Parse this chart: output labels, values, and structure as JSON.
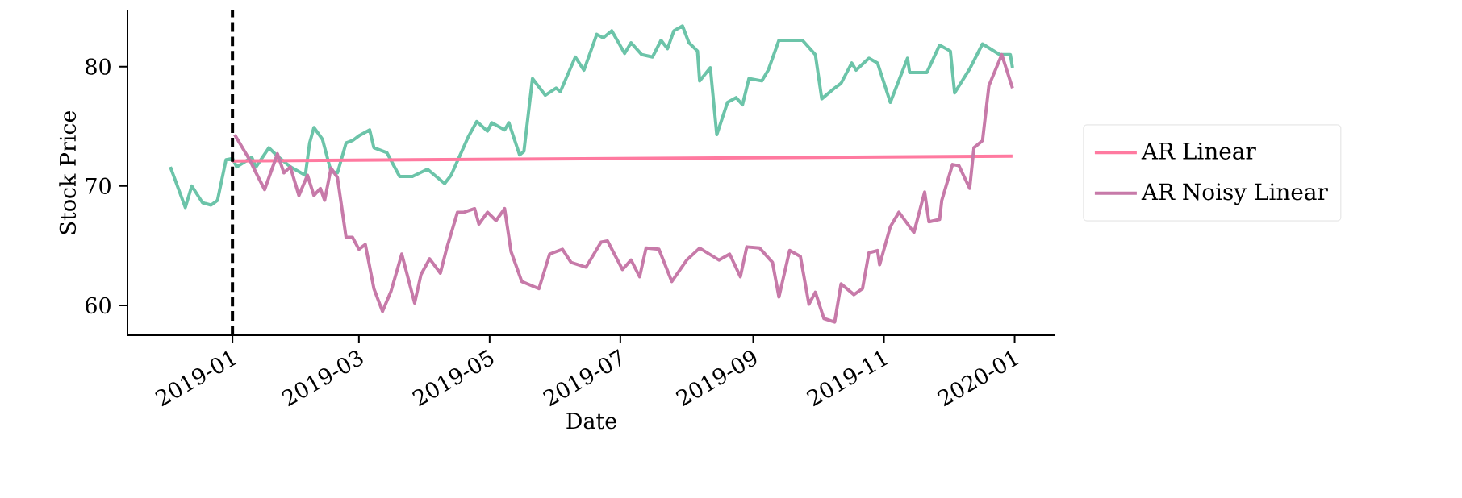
{
  "chart_data": {
    "type": "line",
    "xlabel": "Date",
    "ylabel": "Stock Price",
    "xlim": [
      "2018-11-13",
      "2020-01-20"
    ],
    "ylim": [
      57.5,
      84.7
    ],
    "xticks": [
      "2019-01",
      "2019-03",
      "2019-05",
      "2019-07",
      "2019-09",
      "2019-11",
      "2020-01"
    ],
    "yticks": [
      60,
      70,
      80
    ],
    "legend": "right",
    "grid": false,
    "ref_lines": [
      {
        "axis": "x",
        "value": "2019-01-01",
        "color": "#000000",
        "line_style": "dashed"
      }
    ],
    "series": [
      {
        "color": "#6cc4a9",
        "x": [
          "2018-12-03",
          "2018-12-10",
          "2018-12-13",
          "2018-12-18",
          "2018-12-22",
          "2018-12-25",
          "2018-12-29",
          "2019-01-01",
          "2019-01-03",
          "2019-01-10",
          "2019-01-12",
          "2019-01-18",
          "2019-01-22",
          "2019-01-28",
          "2019-02-04",
          "2019-02-06",
          "2019-02-08",
          "2019-02-12",
          "2019-02-16",
          "2019-02-19",
          "2019-02-23",
          "2019-02-26",
          "2019-03-01",
          "2019-03-06",
          "2019-03-08",
          "2019-03-14",
          "2019-03-20",
          "2019-03-26",
          "2019-04-02",
          "2019-04-10",
          "2019-04-13",
          "2019-04-18",
          "2019-04-21",
          "2019-04-25",
          "2019-04-30",
          "2019-05-02",
          "2019-05-08",
          "2019-05-10",
          "2019-05-15",
          "2019-05-17",
          "2019-05-21",
          "2019-05-27",
          "2019-06-01",
          "2019-06-03",
          "2019-06-10",
          "2019-06-14",
          "2019-06-20",
          "2019-06-23",
          "2019-06-27",
          "2019-07-03",
          "2019-07-06",
          "2019-07-11",
          "2019-07-16",
          "2019-07-20",
          "2019-07-23",
          "2019-07-26",
          "2019-07-30",
          "2019-08-02",
          "2019-08-06",
          "2019-08-07",
          "2019-08-12",
          "2019-08-15",
          "2019-08-20",
          "2019-08-24",
          "2019-08-27",
          "2019-08-30",
          "2019-09-05",
          "2019-09-08",
          "2019-09-13",
          "2019-09-19",
          "2019-09-24",
          "2019-09-30",
          "2019-10-03",
          "2019-10-09",
          "2019-10-12",
          "2019-10-17",
          "2019-10-19",
          "2019-10-25",
          "2019-10-29",
          "2019-11-04",
          "2019-11-12",
          "2019-11-13",
          "2019-11-21",
          "2019-11-27",
          "2019-12-02",
          "2019-12-04",
          "2019-12-11",
          "2019-12-17",
          "2019-12-25",
          "2019-12-30",
          "2019-12-31"
        ],
        "values": [
          71.6,
          68.2,
          70.0,
          68.6,
          68.4,
          68.8,
          72.2,
          72.3,
          71.6,
          72.4,
          71.6,
          73.2,
          72.5,
          71.6,
          70.9,
          73.6,
          74.9,
          73.9,
          71.2,
          71.1,
          73.6,
          73.8,
          74.2,
          74.7,
          73.2,
          72.8,
          70.8,
          70.8,
          71.4,
          70.2,
          70.9,
          72.9,
          74.1,
          75.4,
          74.6,
          75.3,
          74.7,
          75.3,
          72.6,
          72.9,
          79.0,
          77.6,
          78.2,
          77.9,
          80.8,
          79.7,
          82.7,
          82.4,
          83.0,
          81.1,
          82.0,
          81.0,
          80.8,
          82.2,
          81.5,
          83.0,
          83.4,
          82.0,
          81.3,
          78.8,
          79.9,
          74.3,
          77.0,
          77.4,
          76.8,
          79.0,
          78.8,
          79.7,
          82.2,
          82.2,
          82.2,
          81.0,
          77.3,
          78.2,
          78.6,
          80.3,
          79.7,
          80.7,
          80.3,
          77.0,
          80.7,
          79.5,
          79.5,
          81.8,
          81.3,
          77.8,
          79.8,
          81.9,
          81.0,
          81.0,
          79.9
        ]
      },
      {
        "name": "AR Linear",
        "color": "#ff7aa0",
        "x": [
          "2019-01-01",
          "2019-12-31"
        ],
        "values": [
          72.1,
          72.5
        ]
      },
      {
        "name": "AR Noisy Linear",
        "color": "#c77aa9",
        "x": [
          "2019-01-02",
          "2019-01-09",
          "2019-01-12",
          "2019-01-16",
          "2019-01-22",
          "2019-01-25",
          "2019-01-28",
          "2019-02-01",
          "2019-02-05",
          "2019-02-08",
          "2019-02-11",
          "2019-02-13",
          "2019-02-16",
          "2019-02-19",
          "2019-02-23",
          "2019-02-26",
          "2019-03-01",
          "2019-03-04",
          "2019-03-08",
          "2019-03-12",
          "2019-03-16",
          "2019-03-21",
          "2019-03-27",
          "2019-03-30",
          "2019-04-03",
          "2019-04-08",
          "2019-04-11",
          "2019-04-16",
          "2019-04-19",
          "2019-04-24",
          "2019-04-26",
          "2019-04-30",
          "2019-05-04",
          "2019-05-08",
          "2019-05-11",
          "2019-05-16",
          "2019-05-24",
          "2019-05-29",
          "2019-06-04",
          "2019-06-08",
          "2019-06-15",
          "2019-06-22",
          "2019-06-25",
          "2019-07-02",
          "2019-07-06",
          "2019-07-10",
          "2019-07-13",
          "2019-07-19",
          "2019-07-25",
          "2019-08-01",
          "2019-08-07",
          "2019-08-16",
          "2019-08-21",
          "2019-08-26",
          "2019-08-29",
          "2019-09-04",
          "2019-09-10",
          "2019-09-13",
          "2019-09-18",
          "2019-09-23",
          "2019-09-27",
          "2019-09-30",
          "2019-10-04",
          "2019-10-09",
          "2019-10-12",
          "2019-10-18",
          "2019-10-22",
          "2019-10-25",
          "2019-10-29",
          "2019-10-30",
          "2019-11-04",
          "2019-11-08",
          "2019-11-15",
          "2019-11-20",
          "2019-11-22",
          "2019-11-27",
          "2019-11-28",
          "2019-12-03",
          "2019-12-06",
          "2019-12-11",
          "2019-12-13",
          "2019-12-17",
          "2019-12-20",
          "2019-12-26",
          "2019-12-31"
        ],
        "values": [
          74.3,
          72.2,
          71.1,
          69.7,
          72.7,
          71.1,
          71.6,
          69.2,
          70.9,
          69.2,
          69.8,
          68.8,
          71.5,
          70.7,
          65.7,
          65.7,
          64.7,
          65.1,
          61.4,
          59.5,
          61.2,
          64.3,
          60.2,
          62.6,
          63.9,
          62.7,
          64.8,
          67.8,
          67.8,
          68.1,
          66.8,
          67.8,
          67.1,
          68.1,
          64.5,
          62.0,
          61.4,
          64.3,
          64.7,
          63.6,
          63.2,
          65.3,
          65.4,
          63.0,
          63.8,
          62.4,
          64.8,
          64.7,
          62.0,
          63.8,
          64.8,
          63.8,
          64.3,
          62.4,
          64.9,
          64.8,
          63.6,
          60.7,
          64.6,
          64.1,
          60.1,
          61.1,
          58.9,
          58.6,
          61.8,
          60.9,
          61.4,
          64.4,
          64.6,
          63.4,
          66.6,
          67.8,
          66.1,
          69.5,
          67.0,
          67.2,
          68.8,
          71.8,
          71.7,
          69.8,
          73.2,
          73.8,
          78.4,
          81.0,
          78.2
        ]
      }
    ]
  }
}
